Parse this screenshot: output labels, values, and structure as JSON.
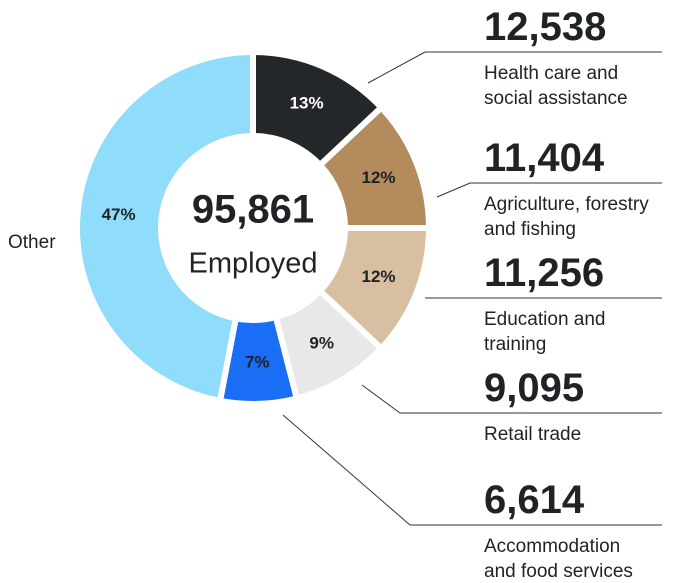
{
  "chart_data": {
    "type": "donut",
    "total": "95,861",
    "center_label": "Employed",
    "categories": [
      [
        "Health care and",
        "social assistance"
      ],
      [
        "Agriculture, forestry",
        "and fishing"
      ],
      [
        "Education and",
        "training"
      ],
      [
        "Retail trade"
      ],
      [
        "Accommodation",
        "and food services"
      ],
      [
        "Other"
      ]
    ],
    "values": [
      13,
      12,
      12,
      9,
      7,
      47
    ],
    "value_labels": [
      "13%",
      "12%",
      "12%",
      "9%",
      "7%",
      "47%"
    ],
    "count_labels": [
      "12,538",
      "11,404",
      "11,256",
      "9,095",
      "6,614"
    ],
    "colors": [
      "#23272a",
      "#b38b5d",
      "#d8bfa1",
      "#e8e8e8",
      "#1a6ef5",
      "#8fdcfb"
    ],
    "label_colors": [
      "#ffffff",
      "#1f2326",
      "#1f2326",
      "#1f2326",
      "#1f2326",
      "#1f2326"
    ]
  }
}
